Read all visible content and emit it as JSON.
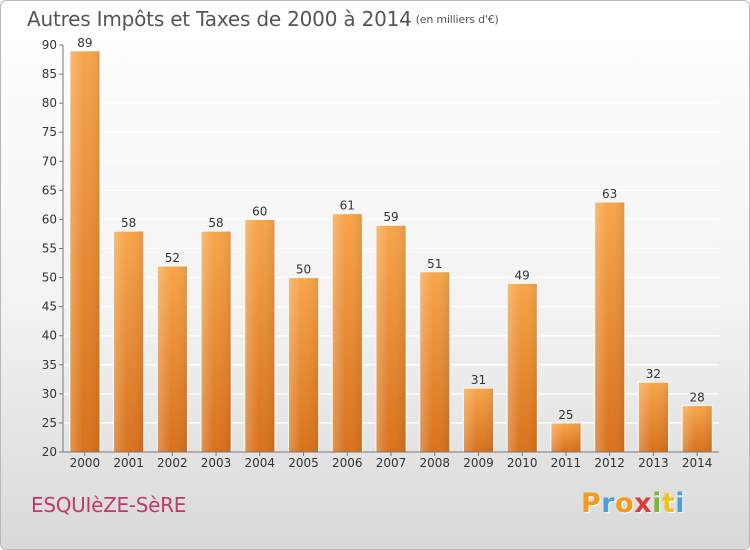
{
  "header": {
    "title": "Autres Impôts et Taxes de 2000 à 2014",
    "subtitle": "(en milliers d'€)"
  },
  "footer": {
    "commune": "ESQUIèZE-SèRE",
    "logo_text": "Proxiti",
    "logo_colors": [
      "#f29a1c",
      "#4a9fd8",
      "#f29a1c",
      "#d83c3c",
      "#7cb82f",
      "#f2c21c",
      "#4a9fd8"
    ]
  },
  "colors": {
    "bar_light": "#f7a54a",
    "bar_dark": "#d8711c",
    "bar_edge": "#ffffff",
    "axis": "#777777",
    "grid": "#ffffff"
  },
  "chart_data": {
    "type": "bar",
    "title": "Autres Impôts et Taxes de 2000 à 2014",
    "subtitle": "(en milliers d'€)",
    "categories": [
      "2000",
      "2001",
      "2002",
      "2003",
      "2004",
      "2005",
      "2006",
      "2007",
      "2008",
      "2009",
      "2010",
      "2011",
      "2012",
      "2013",
      "2014"
    ],
    "values": [
      89,
      58,
      52,
      58,
      60,
      50,
      61,
      59,
      51,
      31,
      49,
      25,
      63,
      32,
      28
    ],
    "ylim": [
      20,
      90
    ],
    "yticks": [
      20,
      25,
      30,
      35,
      40,
      45,
      50,
      55,
      60,
      65,
      70,
      75,
      80,
      85,
      90
    ],
    "xlabel": "",
    "ylabel": "",
    "grid": true,
    "data_labels": true
  }
}
